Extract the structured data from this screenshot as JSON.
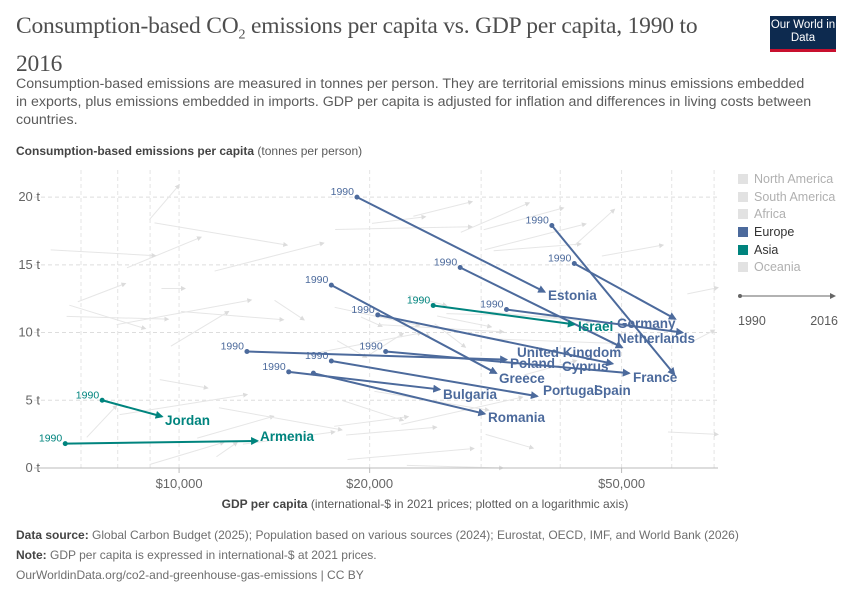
{
  "header": {
    "title_pre": "Consumption-based CO",
    "title_sub": "2",
    "title_post": " emissions per capita vs. GDP per capita, 1990 to 2016",
    "subtitle": "Consumption-based emissions are measured in tonnes per person. They are territorial emissions minus emissions embedded in exports, plus emissions embedded in imports. GDP per capita is adjusted for inflation and differences in living costs between countries.",
    "logo": "Our World in Data"
  },
  "footer": {
    "source_label": "Data source:",
    "source": " Global Carbon Budget (2025); Population based on various sources (2024); Eurostat, OECD, IMF, and World Bank (2026)",
    "note_label": "Note:",
    "note": " GDP per capita is expressed in international-$ at 2021 prices.",
    "url": "OurWorldinData.org/co2-and-greenhouse-gas-emissions | CC BY"
  },
  "legend": [
    {
      "name": "North America",
      "color": "#e2e2e2",
      "active": false
    },
    {
      "name": "South America",
      "color": "#e2e2e2",
      "active": false
    },
    {
      "name": "Africa",
      "color": "#e2e2e2",
      "active": false
    },
    {
      "name": "Europe",
      "color": "#4c6a9c",
      "active": true
    },
    {
      "name": "Asia",
      "color": "#00847e",
      "active": true
    },
    {
      "name": "Oceania",
      "color": "#e2e2e2",
      "active": false
    }
  ],
  "timeline": {
    "start": "1990",
    "end": "2016"
  },
  "chart_data": {
    "type": "scatter",
    "subtype": "connected-arrows",
    "title": "Consumption-based CO2 emissions per capita vs. GDP per capita, 1990 to 2016",
    "ylabel_bold": "Consumption-based emissions per capita",
    "ylabel_unit": " (tonnes per person)",
    "xlabel_bold": "GDP per capita",
    "xlabel_unit": " (international-$ in 2021 prices; plotted on a logarithmic axis)",
    "x_scale": "log",
    "xlim": [
      5900,
      71000
    ],
    "ylim": [
      0,
      22
    ],
    "x_ticks": [
      {
        "value": 10000,
        "label": "$10,000"
      },
      {
        "value": 20000,
        "label": "$20,000"
      },
      {
        "value": 50000,
        "label": "$50,000"
      }
    ],
    "y_ticks": [
      {
        "value": 0,
        "label": "0 t"
      },
      {
        "value": 5,
        "label": "5 t"
      },
      {
        "value": 10,
        "label": "10 t"
      },
      {
        "value": 15,
        "label": "15 t"
      },
      {
        "value": 20,
        "label": "20 t"
      }
    ],
    "grid": true,
    "start_label": "1990",
    "legend_position": "right",
    "series": [
      {
        "name": "Estonia",
        "region": "Europe",
        "start": [
          19100,
          20.0
        ],
        "end": [
          37800,
          13.0
        ],
        "show_start": true
      },
      {
        "name": "France",
        "region": "Europe",
        "start": [
          38800,
          17.9
        ],
        "end": [
          60600,
          6.9
        ],
        "show_start": true
      },
      {
        "name": "Germany",
        "region": "Europe",
        "start": [
          42100,
          15.1
        ],
        "end": [
          60800,
          11.0
        ],
        "show_start": true
      },
      {
        "name": "United Kingdom",
        "region": "Europe",
        "start": [
          27800,
          14.8
        ],
        "end": [
          50100,
          8.9
        ],
        "show_start": true
      },
      {
        "name": "Greece",
        "region": "Europe",
        "start": [
          17400,
          13.5
        ],
        "end": [
          31700,
          7.0
        ],
        "show_start": true
      },
      {
        "name": "Israel",
        "region": "Asia",
        "start": [
          25200,
          12.0
        ],
        "end": [
          42100,
          10.6
        ],
        "show_start": true
      },
      {
        "name": "Netherlands",
        "region": "Europe",
        "start": [
          32900,
          11.7
        ],
        "end": [
          62400,
          10.0
        ],
        "show_start": true
      },
      {
        "name": "Cyprus",
        "region": "Europe",
        "start": [
          20600,
          11.3
        ],
        "end": [
          48400,
          7.7
        ],
        "show_start": true
      },
      {
        "name": "Spain",
        "region": "Europe",
        "start": [
          21200,
          8.6
        ],
        "end": [
          51400,
          7.0
        ],
        "show_start": true
      },
      {
        "name": "Poland",
        "region": "Europe",
        "start": [
          12800,
          8.6
        ],
        "end": [
          32900,
          8.0
        ],
        "show_start": true
      },
      {
        "name": "Portugal",
        "region": "Europe",
        "start": [
          17400,
          7.9
        ],
        "end": [
          36800,
          5.3
        ],
        "show_start": true
      },
      {
        "name": "Bulgaria",
        "region": "Europe",
        "start": [
          14900,
          7.1
        ],
        "end": [
          25800,
          5.8
        ],
        "show_start": true
      },
      {
        "name": "Romania",
        "region": "Europe",
        "start": [
          16300,
          7.0
        ],
        "end": [
          30400,
          4.0
        ],
        "show_start": false
      },
      {
        "name": "Jordan",
        "region": "Asia",
        "start": [
          7560,
          5.0
        ],
        "end": [
          9400,
          3.8
        ],
        "show_start": true
      },
      {
        "name": "Armenia",
        "region": "Asia",
        "start": [
          6610,
          1.8
        ],
        "end": [
          13300,
          2.0
        ],
        "show_start": true
      }
    ]
  }
}
